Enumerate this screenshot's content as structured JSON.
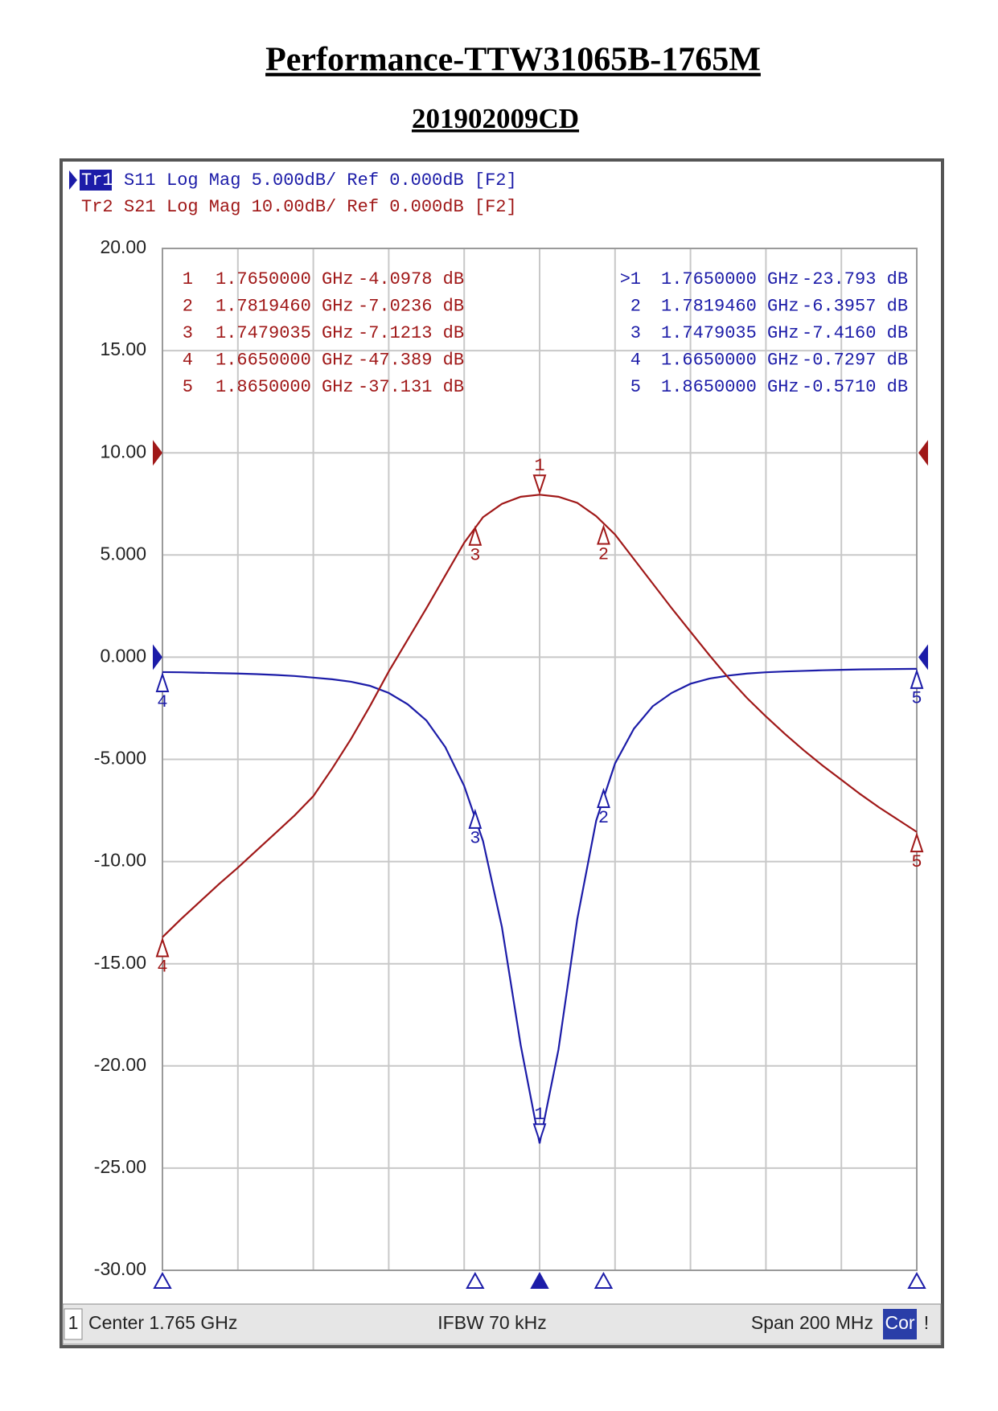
{
  "page": {
    "title": "Performance-TTW31065B-1765M",
    "subtitle": "201902009CD"
  },
  "chart_data": {
    "type": "line",
    "xlim": [
      1.665,
      1.865
    ],
    "x_divisions": 10,
    "ylim": [
      -30,
      20
    ],
    "yticks": [
      {
        "value": 20,
        "label": "20.00"
      },
      {
        "value": 15,
        "label": "15.00"
      },
      {
        "value": 10,
        "label": "10.00"
      },
      {
        "value": 5,
        "label": "5.000"
      },
      {
        "value": 0,
        "label": "0.000"
      },
      {
        "value": -5,
        "label": "-5.000"
      },
      {
        "value": -10,
        "label": "-10.00"
      },
      {
        "value": -15,
        "label": "-15.00"
      },
      {
        "value": -20,
        "label": "-20.00"
      },
      {
        "value": -25,
        "label": "-25.00"
      },
      {
        "value": -30,
        "label": "-30.00"
      }
    ],
    "y2lim": [
      -80,
      20
    ],
    "grid": true,
    "x": [
      1.665,
      1.67,
      1.675,
      1.68,
      1.685,
      1.69,
      1.695,
      1.7,
      1.705,
      1.71,
      1.715,
      1.72,
      1.725,
      1.73,
      1.735,
      1.74,
      1.745,
      1.75,
      1.755,
      1.76,
      1.765,
      1.77,
      1.775,
      1.78,
      1.785,
      1.79,
      1.795,
      1.8,
      1.805,
      1.81,
      1.815,
      1.82,
      1.825,
      1.83,
      1.835,
      1.84,
      1.845,
      1.85,
      1.855,
      1.86,
      1.865
    ],
    "series": [
      {
        "trace": "Tr1",
        "name": "S11",
        "format": "Log Mag 5.000dB/ Ref 0.000dB [F2]",
        "color": "#1c1ca8",
        "axis": "y",
        "active": true,
        "active_prefix": ">",
        "table_corner": "top-right",
        "values": [
          -0.73,
          -0.74,
          -0.76,
          -0.78,
          -0.8,
          -0.83,
          -0.87,
          -0.92,
          -1.0,
          -1.08,
          -1.2,
          -1.4,
          -1.75,
          -2.3,
          -3.1,
          -4.4,
          -6.3,
          -9.0,
          -13.2,
          -19.0,
          -23.79,
          -19.2,
          -12.8,
          -8.0,
          -5.2,
          -3.5,
          -2.4,
          -1.75,
          -1.3,
          -1.05,
          -0.9,
          -0.8,
          -0.74,
          -0.7,
          -0.67,
          -0.64,
          -0.62,
          -0.6,
          -0.59,
          -0.58,
          -0.57
        ],
        "markers": [
          {
            "id": "1",
            "x": 1.765,
            "value": -23.793,
            "x_label": "1.7650000 GHz",
            "value_label": "-23.793 dB"
          },
          {
            "id": "2",
            "x": 1.781946,
            "value": -6.3957,
            "x_label": "1.7819460 GHz",
            "value_label": "-6.3957 dB"
          },
          {
            "id": "3",
            "x": 1.7479035,
            "value": -7.416,
            "x_label": "1.7479035 GHz",
            "value_label": "-7.4160 dB"
          },
          {
            "id": "4",
            "x": 1.665,
            "value": -0.7297,
            "x_label": "1.6650000 GHz",
            "value_label": "-0.7297 dB"
          },
          {
            "id": "5",
            "x": 1.865,
            "value": -0.571,
            "x_label": "1.8650000 GHz",
            "value_label": "-0.5710 dB"
          }
        ]
      },
      {
        "trace": "Tr2",
        "name": "S21",
        "format": "Log Mag 10.00dB/ Ref 0.000dB [F2]",
        "color": "#a01818",
        "axis": "y2",
        "active": false,
        "table_corner": "top-left",
        "values": [
          -47.4,
          -45.6,
          -43.9,
          -42.2,
          -40.6,
          -38.9,
          -37.2,
          -35.5,
          -33.6,
          -30.9,
          -28.0,
          -24.8,
          -21.4,
          -18.3,
          -15.2,
          -12.0,
          -8.8,
          -6.3,
          -5.0,
          -4.3,
          -4.1,
          -4.3,
          -4.9,
          -6.2,
          -8.0,
          -10.4,
          -12.8,
          -15.2,
          -17.5,
          -19.8,
          -22.0,
          -24.0,
          -25.8,
          -27.5,
          -29.1,
          -30.6,
          -32.0,
          -33.4,
          -34.7,
          -35.9,
          -37.1
        ],
        "markers": [
          {
            "id": "1",
            "x": 1.765,
            "value": -4.0978,
            "x_label": "1.7650000 GHz",
            "value_label": "-4.0978 dB"
          },
          {
            "id": "2",
            "x": 1.781946,
            "value": -7.0236,
            "x_label": "1.7819460 GHz",
            "value_label": "-7.0236 dB"
          },
          {
            "id": "3",
            "x": 1.7479035,
            "value": -7.1213,
            "x_label": "1.7479035 GHz",
            "value_label": "-7.1213 dB"
          },
          {
            "id": "4",
            "x": 1.665,
            "value": -47.389,
            "x_label": "1.6650000 GHz",
            "value_label": "-47.389 dB"
          },
          {
            "id": "5",
            "x": 1.865,
            "value": -37.131,
            "x_label": "1.8650000 GHz",
            "value_label": "-37.131 dB"
          }
        ]
      }
    ],
    "status_bar": {
      "channel": "1",
      "center": "Center 1.765 GHz",
      "ifbw": "IFBW 70 kHz",
      "span": "Span 200 MHz",
      "correction": "Cor",
      "flag": "!"
    }
  }
}
